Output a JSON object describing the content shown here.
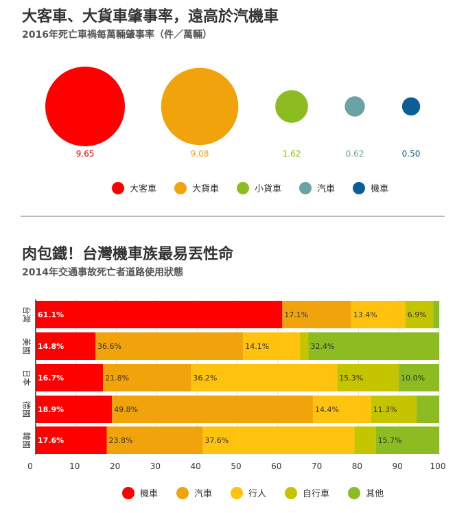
{
  "section1": {
    "title": "大客車、大貨車肇事率，遠高於汽機車",
    "subtitle": "2016年死亡車禍每萬輛肇事率（件／萬輛）"
  },
  "section2": {
    "title": "肉包鐵！台灣機車族最易丟性命",
    "subtitle": "2014年交通事故死亡者道路使用狀態"
  },
  "chart_data": [
    {
      "type": "bubble",
      "title": "2016年死亡車禍每萬輛肇事率（件／萬輛）",
      "categories": [
        "大客車",
        "大貨車",
        "小貨車",
        "汽車",
        "機車"
      ],
      "values": [
        9.65,
        9.08,
        1.62,
        0.62,
        0.5
      ],
      "value_labels": [
        "9.65",
        "9.08",
        "1.62",
        "0.62",
        "0.50"
      ],
      "colors": [
        "#ff0000",
        "#f0a30a",
        "#8dbb22",
        "#6aa3a3",
        "#0b5f96"
      ],
      "legend_position": "bottom"
    },
    {
      "type": "bar",
      "orientation": "horizontal",
      "stacked": true,
      "title": "2014年交通事故死亡者道路使用狀態",
      "categories": [
        "台灣",
        "美國",
        "日本",
        "德國",
        "韓國"
      ],
      "series": [
        {
          "name": "機車",
          "color": "#ff0000",
          "values": [
            61.1,
            14.8,
            16.7,
            18.9,
            17.6
          ],
          "labels": [
            "61.1%",
            "14.8%",
            "16.7%",
            "18.9%",
            "17.6%"
          ]
        },
        {
          "name": "汽車",
          "color": "#f0a30a",
          "values": [
            17.1,
            36.6,
            21.8,
            49.8,
            23.8
          ],
          "labels": [
            "17.1%",
            "36.6%",
            "21.8%",
            "49.8%",
            "23.8%"
          ]
        },
        {
          "name": "行人",
          "color": "#ffc20e",
          "values": [
            13.4,
            14.1,
            36.2,
            14.4,
            37.6
          ],
          "labels": [
            "13.4%",
            "14.1%",
            "36.2%",
            "14.4%",
            "37.6%"
          ]
        },
        {
          "name": "自行車",
          "color": "#c5c400",
          "values": [
            6.9,
            2.1,
            15.3,
            11.3,
            5.3
          ],
          "labels": [
            "6.9%",
            "",
            "15.3%",
            "11.3%",
            ""
          ]
        },
        {
          "name": "其他",
          "color": "#8dbb22",
          "values": [
            1.5,
            32.4,
            10.0,
            5.6,
            15.7
          ],
          "labels": [
            "",
            "32.4%",
            "10.0%",
            "",
            "15.7%"
          ]
        }
      ],
      "xlim": [
        0,
        100
      ],
      "xticks": [
        "0",
        "10",
        "20",
        "30",
        "40",
        "50",
        "60",
        "70",
        "80",
        "90",
        "100"
      ],
      "grid": true,
      "legend_position": "bottom"
    }
  ]
}
